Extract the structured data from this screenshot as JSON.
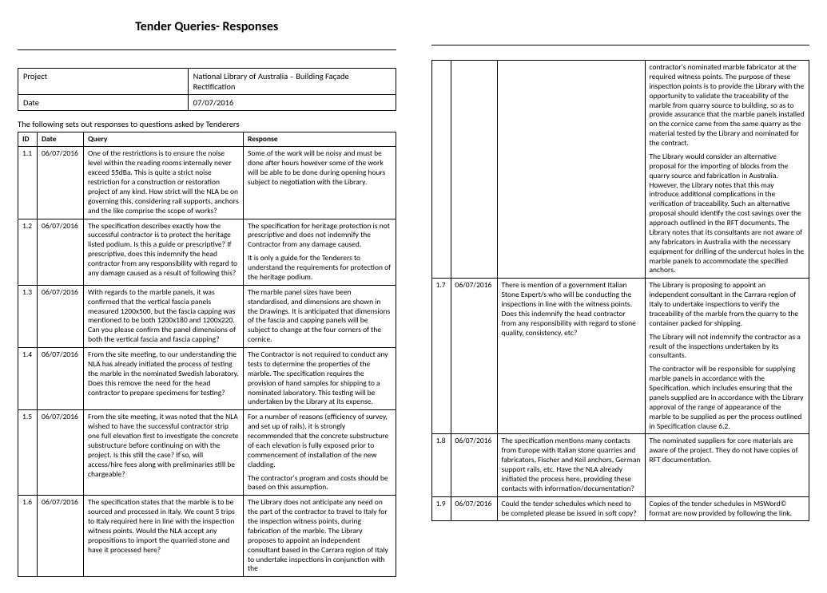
{
  "header": {
    "title": "Tender Queries- Responses"
  },
  "project_table": {
    "project_label": "Project",
    "project_value": "National Library of Australia – Building Façade Rectification",
    "date_label": "Date",
    "date_value": "07/07/2016"
  },
  "intro": "The following sets out responses to questions asked by Tenderers",
  "columns": {
    "id": "ID",
    "date": "Date",
    "query": "Query",
    "response": "Response"
  },
  "rows_page1": [
    {
      "id": "1.1",
      "date": "06/07/2016",
      "query": "One of the restrictions is to ensure the noise level within the reading rooms internally never exceed 55dBa. This is quite a strict noise restriction for a construction or restoration project of any kind. How strict will the NLA be on governing this, considering rail supports, anchors and the like comprise the scope of works?",
      "response": "Some of the work will be noisy and must be done after hours however some of the work will be able to be done during opening hours subject to negotiation with the Library."
    },
    {
      "id": "1.2",
      "date": "06/07/2016",
      "query": "The specification describes exactly how the successful contractor is to protect the heritage listed podium. Is this a guide or prescriptive? If prescriptive, does this indemnify the head contractor from any responsibility with regard to any damage caused as a result of following this?",
      "response_paras": [
        "The specification for heritage protection is not prescriptive and does not indemnify the Contractor from any damage caused.",
        "It is only a guide for the Tenderers to understand the requirements for protection of the heritage podium."
      ]
    },
    {
      "id": "1.3",
      "date": "06/07/2016",
      "query": "With regards to the marble panels, it was confirmed that the vertical fascia panels measured 1200x500, but the fascia capping was mentioned to be both 1200x180 and 1200x220. Can you please confirm the panel dimensions of both the vertical fascia and fascia capping?",
      "response": "The marble panel sizes have been standardised, and dimensions are shown in the Drawings. It is anticipated that dimensions of the fascia and capping panels will be subject to change at the four corners of the cornice."
    },
    {
      "id": "1.4",
      "date": "06/07/2016",
      "query": "From the site meeting, to our understanding the NLA has already initiated the process of testing the marble in the nominated Swedish laboratory. Does this remove the need for the head contractor to prepare specimens for testing?",
      "response": "The Contractor is not required to conduct any tests to determine the properties of the marble.  The specification requires the provision of hand samples for shipping to a nominated laboratory.  This testing will be undertaken by the Library at its expense."
    },
    {
      "id": "1.5",
      "date": "06/07/2016",
      "query": "From the site meeting, it was noted that the NLA wished to have the successful contractor strip one full elevation first to investigate the concrete substructure before continuing on with the project. Is this still the case? If so, will access/hire fees along with preliminaries still be chargeable?",
      "response_paras": [
        "For a number of reasons (efficiency of survey, and set up of rails), it is strongly recommended that the concrete substructure of each elevation is fully exposed prior to commencement of installation of the new cladding.",
        "The contractor's program and costs should be based on this assumption."
      ]
    },
    {
      "id": "1.6",
      "date": "06/07/2016",
      "query": "The specification states that the marble is to be sourced and processed in Italy. We count 5 trips to Italy required here in line with the inspection witness points. Would the NLA accept any propositions to import the quarried stone and have it processed here?",
      "response": "The Library does not anticipate any need on the part of the contractor to travel to Italy for the inspection witness points, during fabrication of the marble. The Library proposes to appoint an independent consultant based in the Carrara region of Italy to undertake inspections in conjunction with the"
    }
  ],
  "rows_page2": [
    {
      "id": "",
      "date": "",
      "query": "",
      "response_paras": [
        "contractor's nominated marble fabricator at the required witness points.  The purpose of these inspection points is to provide the Library with the opportunity to validate the traceability of the marble from quarry source to building, so as to provide assurance that the marble panels installed on the cornice came from the same quarry as the material tested by the Library and nominated for the contract.",
        "The Library would consider an alternative proposal for the importing of blocks from the quarry source and fabrication in Australia.  However, the Library notes that this may introduce additional complications in the verification of traceability.  Such an alternative proposal should identify the cost savings over the approach outlined in the RFT documents.  The Library notes that its consultants are not aware of any fabricators in Australia with the necessary equipment for drilling of the undercut holes in the marble panels to accommodate the specified anchors."
      ]
    },
    {
      "id": "1.7",
      "date": "06/07/2016",
      "query": "There is mention of a government Italian Stone Expert/s who will be conducting the inspections in line with the witness points. Does this indemnify the head contractor from any responsibility with regard to stone quality, consistency, etc?",
      "response_paras": [
        "The Library is proposing to appoint an independent consultant in the Carrara region of Italy to undertake inspections to verify the traceability of the marble from the quarry to the container packed for shipping.",
        "The Library will not indemnify the contractor as a result of the inspections undertaken by its consultants.",
        "The contractor will be responsible for supplying marble panels in accordance with the Specification, which includes ensuring that the panels supplied are in accordance with the Library approval of the range of appearance of the marble to be supplied as per the process outlined in Specification clause 6.2."
      ]
    },
    {
      "id": "1.8",
      "date": "06/07/2016",
      "query": "The specification mentions many contacts from Europe with Italian stone quarries and fabricators, Fischer and Keil anchors, German support rails, etc. Have the NLA already initiated the process here, providing these contacts with information/documentation?",
      "response": "The nominated suppliers for core materials are aware of the project.  They do not have copies of RFT documentation."
    },
    {
      "id": "1.9",
      "date": "06/07/2016",
      "query": "Could the tender schedules which need to be completed please be issued in soft copy?",
      "response": "Copies of the tender schedules in MSWord© format are now provided by following the link."
    }
  ]
}
